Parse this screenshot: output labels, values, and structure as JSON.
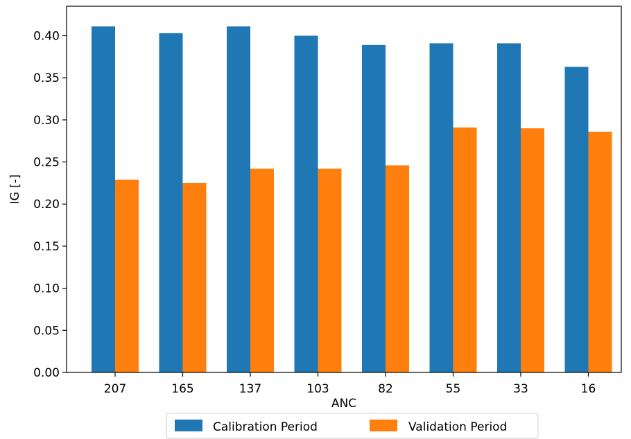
{
  "chart_data": {
    "type": "bar",
    "title": "",
    "xlabel": "ANC",
    "ylabel": "IG [-]",
    "categories": [
      "207",
      "165",
      "137",
      "103",
      "82",
      "55",
      "33",
      "16"
    ],
    "series": [
      {
        "name": "Calibration Period",
        "color": "#1f77b4",
        "values": [
          0.411,
          0.403,
          0.411,
          0.4,
          0.389,
          0.391,
          0.391,
          0.363
        ]
      },
      {
        "name": "Validation Period",
        "color": "#ff7f0e",
        "values": [
          0.229,
          0.225,
          0.242,
          0.242,
          0.246,
          0.291,
          0.29,
          0.286
        ]
      }
    ],
    "ylim": [
      0,
      0.435
    ],
    "yticks": [
      "0.00",
      "0.05",
      "0.10",
      "0.15",
      "0.20",
      "0.25",
      "0.30",
      "0.35",
      "0.40"
    ],
    "grid": false,
    "legend_position": "bottom-center"
  }
}
